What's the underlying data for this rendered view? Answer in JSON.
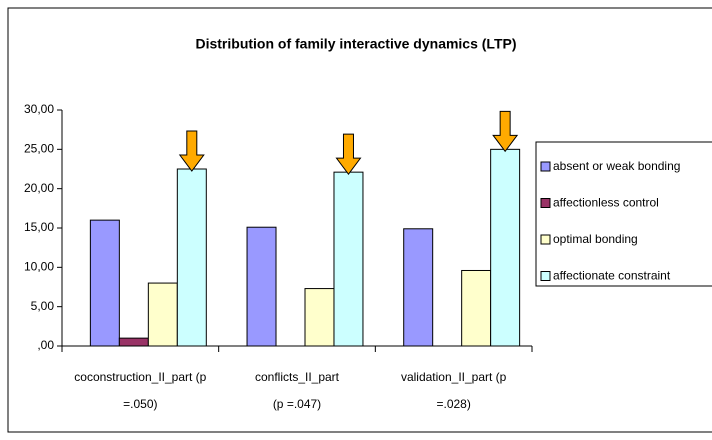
{
  "chart_data": {
    "type": "bar",
    "title": "Distribution of family interactive dynamics (LTP)",
    "categories": [
      [
        "coconstruction_II_part (p",
        "=.050)"
      ],
      [
        "conflicts_II_part",
        "(p =.047)"
      ],
      [
        "validation_II_part    (p",
        "=.028)"
      ]
    ],
    "series": [
      {
        "name": "absent or weak bonding",
        "color": "#9999ff",
        "values": [
          16.0,
          15.1,
          14.9
        ]
      },
      {
        "name": "affectionless control",
        "color": "#993366",
        "values": [
          1.0,
          0,
          0
        ]
      },
      {
        "name": "optimal bonding",
        "color": "#ffffcc",
        "values": [
          8.0,
          7.3,
          9.6
        ]
      },
      {
        "name": "affectionate constraint",
        "color": "#ccffff",
        "values": [
          22.5,
          22.1,
          25.0
        ]
      }
    ],
    "ylim": [
      0,
      30
    ],
    "yticks": [
      {
        "value": 0,
        "label": ",00"
      },
      {
        "value": 5,
        "label": "5,00"
      },
      {
        "value": 10,
        "label": "10,00"
      },
      {
        "value": 15,
        "label": "15,00"
      },
      {
        "value": 20,
        "label": "20,00"
      },
      {
        "value": 25,
        "label": "25,00"
      },
      {
        "value": 30,
        "label": "30,00"
      }
    ],
    "legend": "right"
  }
}
